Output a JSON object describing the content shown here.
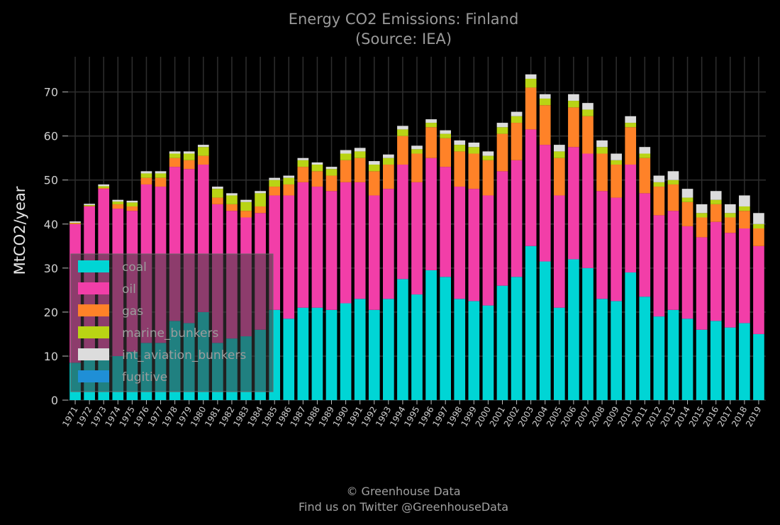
{
  "chart_data": {
    "type": "bar",
    "stacked": true,
    "title": "Energy CO2 Emissions: Finland",
    "subtitle": "(Source: IEA)",
    "ylabel": "MtCO2/year",
    "xlabel": "",
    "ylim": [
      0,
      78
    ],
    "yticks": [
      0,
      10,
      20,
      30,
      40,
      50,
      60,
      70
    ],
    "grid": true,
    "legend_position": "bottom-left",
    "categories": [
      "1971",
      "1972",
      "1973",
      "1974",
      "1975",
      "1976",
      "1977",
      "1978",
      "1979",
      "1980",
      "1981",
      "1982",
      "1983",
      "1984",
      "1985",
      "1986",
      "1987",
      "1988",
      "1989",
      "1990",
      "1991",
      "1992",
      "1993",
      "1994",
      "1995",
      "1996",
      "1997",
      "1998",
      "1999",
      "2000",
      "2001",
      "2002",
      "2003",
      "2004",
      "2005",
      "2006",
      "2007",
      "2008",
      "2009",
      "2010",
      "2011",
      "2012",
      "2013",
      "2014",
      "2015",
      "2016",
      "2017",
      "2018",
      "2019"
    ],
    "series": [
      {
        "name": "coal",
        "color": "#00d5d5",
        "values": [
          8.5,
          10,
          11,
          10,
          11,
          13,
          13,
          18,
          17.5,
          20,
          13,
          14,
          14.5,
          16,
          20.5,
          18.5,
          21,
          21,
          20.5,
          22,
          23,
          20.5,
          23,
          27.5,
          24,
          29.5,
          28,
          23,
          22.5,
          21.5,
          26,
          28,
          35,
          31.5,
          21,
          32,
          30,
          23,
          22.5,
          29,
          23.5,
          19,
          20.5,
          18.5,
          16,
          18,
          16.5,
          17.5,
          15
        ]
      },
      {
        "name": "oil",
        "color": "#f23ea8",
        "values": [
          31.5,
          34,
          37,
          33.5,
          32,
          36,
          35.5,
          35,
          35,
          33.5,
          31.5,
          29,
          27,
          26.5,
          26,
          28,
          28.5,
          27.5,
          27,
          27.5,
          26.5,
          26,
          25,
          26,
          25.5,
          25.5,
          25,
          25.5,
          25.5,
          25,
          26,
          26.5,
          26.5,
          26.5,
          25.5,
          25.5,
          26,
          24.5,
          23.5,
          24.5,
          23.5,
          23,
          22.5,
          21,
          21,
          22.5,
          21.5,
          21.5,
          20
        ]
      },
      {
        "name": "gas",
        "color": "#ff8228",
        "values": [
          0.2,
          0.1,
          0.2,
          1,
          1,
          1.5,
          2,
          2,
          2,
          2,
          1.5,
          1.5,
          1.5,
          1.5,
          2,
          2.5,
          3.5,
          3.5,
          3.5,
          5,
          5.5,
          5.5,
          5.5,
          6.5,
          6.5,
          7,
          6.5,
          8,
          8,
          8,
          8.5,
          8.5,
          9.5,
          9,
          8.5,
          9,
          8.5,
          8.5,
          7.5,
          8.5,
          8,
          6.5,
          6,
          5.5,
          4.5,
          4,
          3.5,
          4,
          4
        ]
      },
      {
        "name": "marine_bunkers",
        "color": "#b9d414",
        "values": [
          0.1,
          0.2,
          0.4,
          0.6,
          0.9,
          1,
          1,
          1,
          1.5,
          2,
          2,
          2,
          2,
          3,
          1.5,
          1.5,
          1.5,
          1.5,
          1.5,
          1.5,
          1.5,
          1.5,
          1.5,
          1.5,
          1,
          1,
          1,
          1.5,
          1.5,
          1,
          1.5,
          1.5,
          2,
          1.5,
          1.5,
          1.5,
          1.5,
          1.5,
          1,
          1,
          1,
          1,
          1,
          1,
          1,
          1,
          1,
          1,
          1
        ]
      },
      {
        "name": "int_aviation_bunkers",
        "color": "#dcdcdc",
        "values": [
          0.3,
          0.3,
          0.4,
          0.4,
          0.4,
          0.5,
          0.5,
          0.5,
          0.5,
          0.5,
          0.5,
          0.5,
          0.5,
          0.5,
          0.5,
          0.5,
          0.5,
          0.5,
          0.5,
          0.8,
          0.8,
          0.8,
          0.8,
          0.8,
          0.8,
          0.8,
          0.8,
          1,
          1,
          1,
          1,
          1,
          1,
          1,
          1.5,
          1.5,
          1.5,
          1.5,
          1.5,
          1.5,
          1.5,
          1.5,
          2,
          2,
          2,
          2,
          2,
          2.5,
          2.5
        ]
      },
      {
        "name": "fugitive",
        "color": "#1f8fd6",
        "values": [
          0,
          0,
          0,
          0,
          0,
          0,
          0,
          0,
          0,
          0,
          0,
          0,
          0,
          0,
          0,
          0,
          0,
          0,
          0,
          0,
          0,
          0,
          0,
          0,
          0,
          0,
          0,
          0,
          0,
          0,
          0,
          0,
          0,
          0,
          0,
          0,
          0,
          0,
          0,
          0,
          0,
          0,
          0,
          0,
          0,
          0,
          0,
          0,
          0
        ]
      }
    ]
  },
  "footer": {
    "line1": "© Greenhouse Data",
    "line2": "Find us on Twitter @GreenhouseData"
  }
}
